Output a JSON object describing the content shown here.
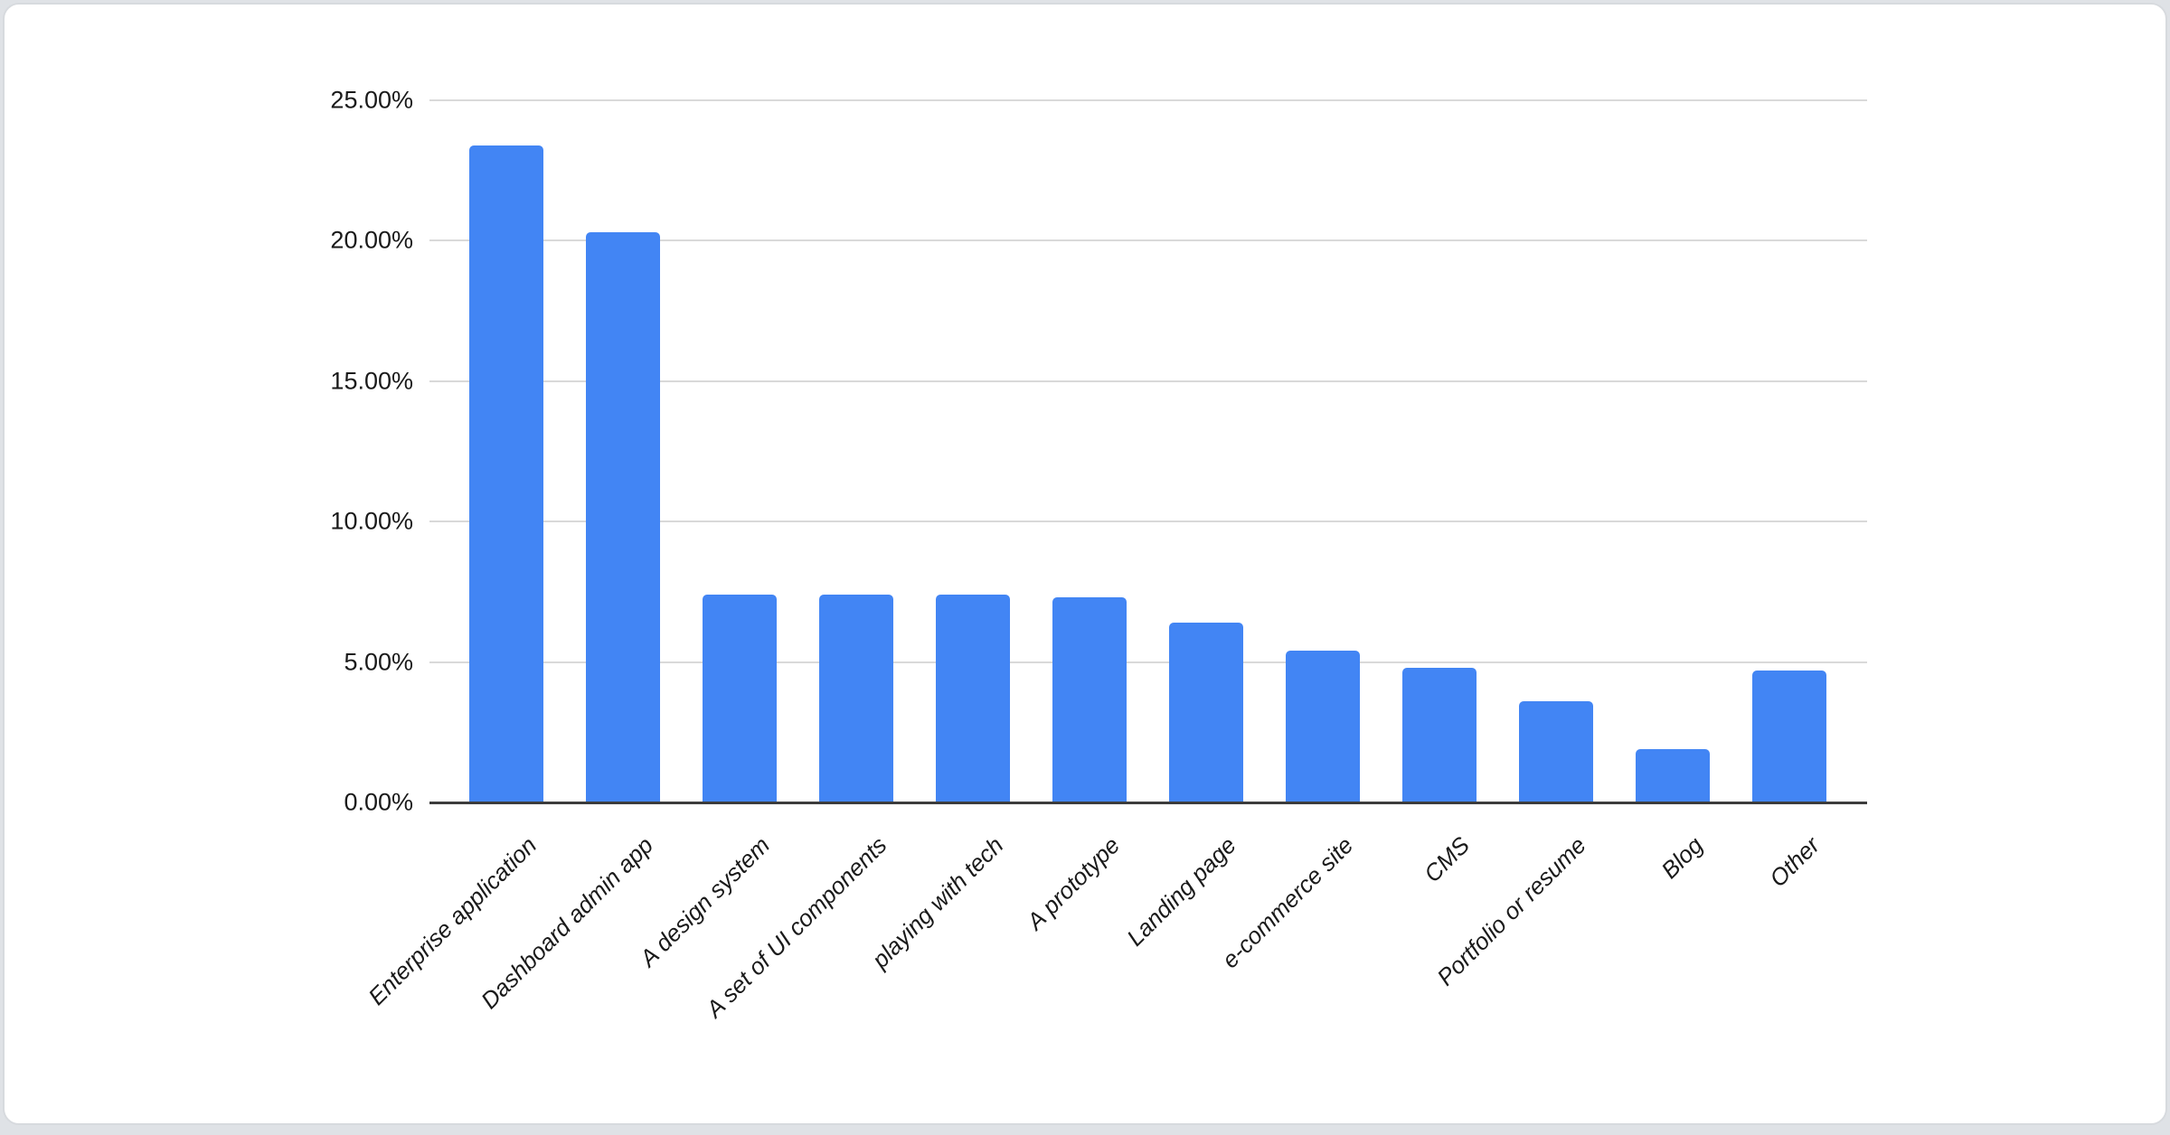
{
  "page": {
    "outside_background": "#dfe2e6",
    "card_background": "#ffffff",
    "card_border_color": "#d7dade"
  },
  "chart_data": {
    "type": "bar",
    "title": "",
    "xlabel": "",
    "ylabel": "",
    "legend": "none",
    "grid": true,
    "categories": [
      "Enterprise application",
      "Dashboard admin app",
      "A design system",
      "A set of UI components",
      "playing with tech",
      "A prototype",
      "Landing page",
      "e-commerce site",
      "CMS",
      "Portfolio or resume",
      "Blog",
      "Other"
    ],
    "values": [
      23.4,
      20.3,
      7.4,
      7.4,
      7.4,
      7.3,
      6.4,
      5.4,
      4.8,
      3.6,
      1.9,
      4.7
    ],
    "value_unit": "percent",
    "ylim": [
      0,
      25
    ],
    "y_ticks": [
      {
        "value": 0,
        "label": "0.00%"
      },
      {
        "value": 5,
        "label": "5.00%"
      },
      {
        "value": 10,
        "label": "10.00%"
      },
      {
        "value": 15,
        "label": "15.00%"
      },
      {
        "value": 20,
        "label": "20.00%"
      },
      {
        "value": 25,
        "label": "25.00%"
      }
    ],
    "x_label_rotation_deg": -45,
    "colors": {
      "bar": "#4285f4",
      "gridline": "#d9d9d9",
      "baseline": "#3c3c3c",
      "tick_text": "#1a1a1a"
    }
  }
}
